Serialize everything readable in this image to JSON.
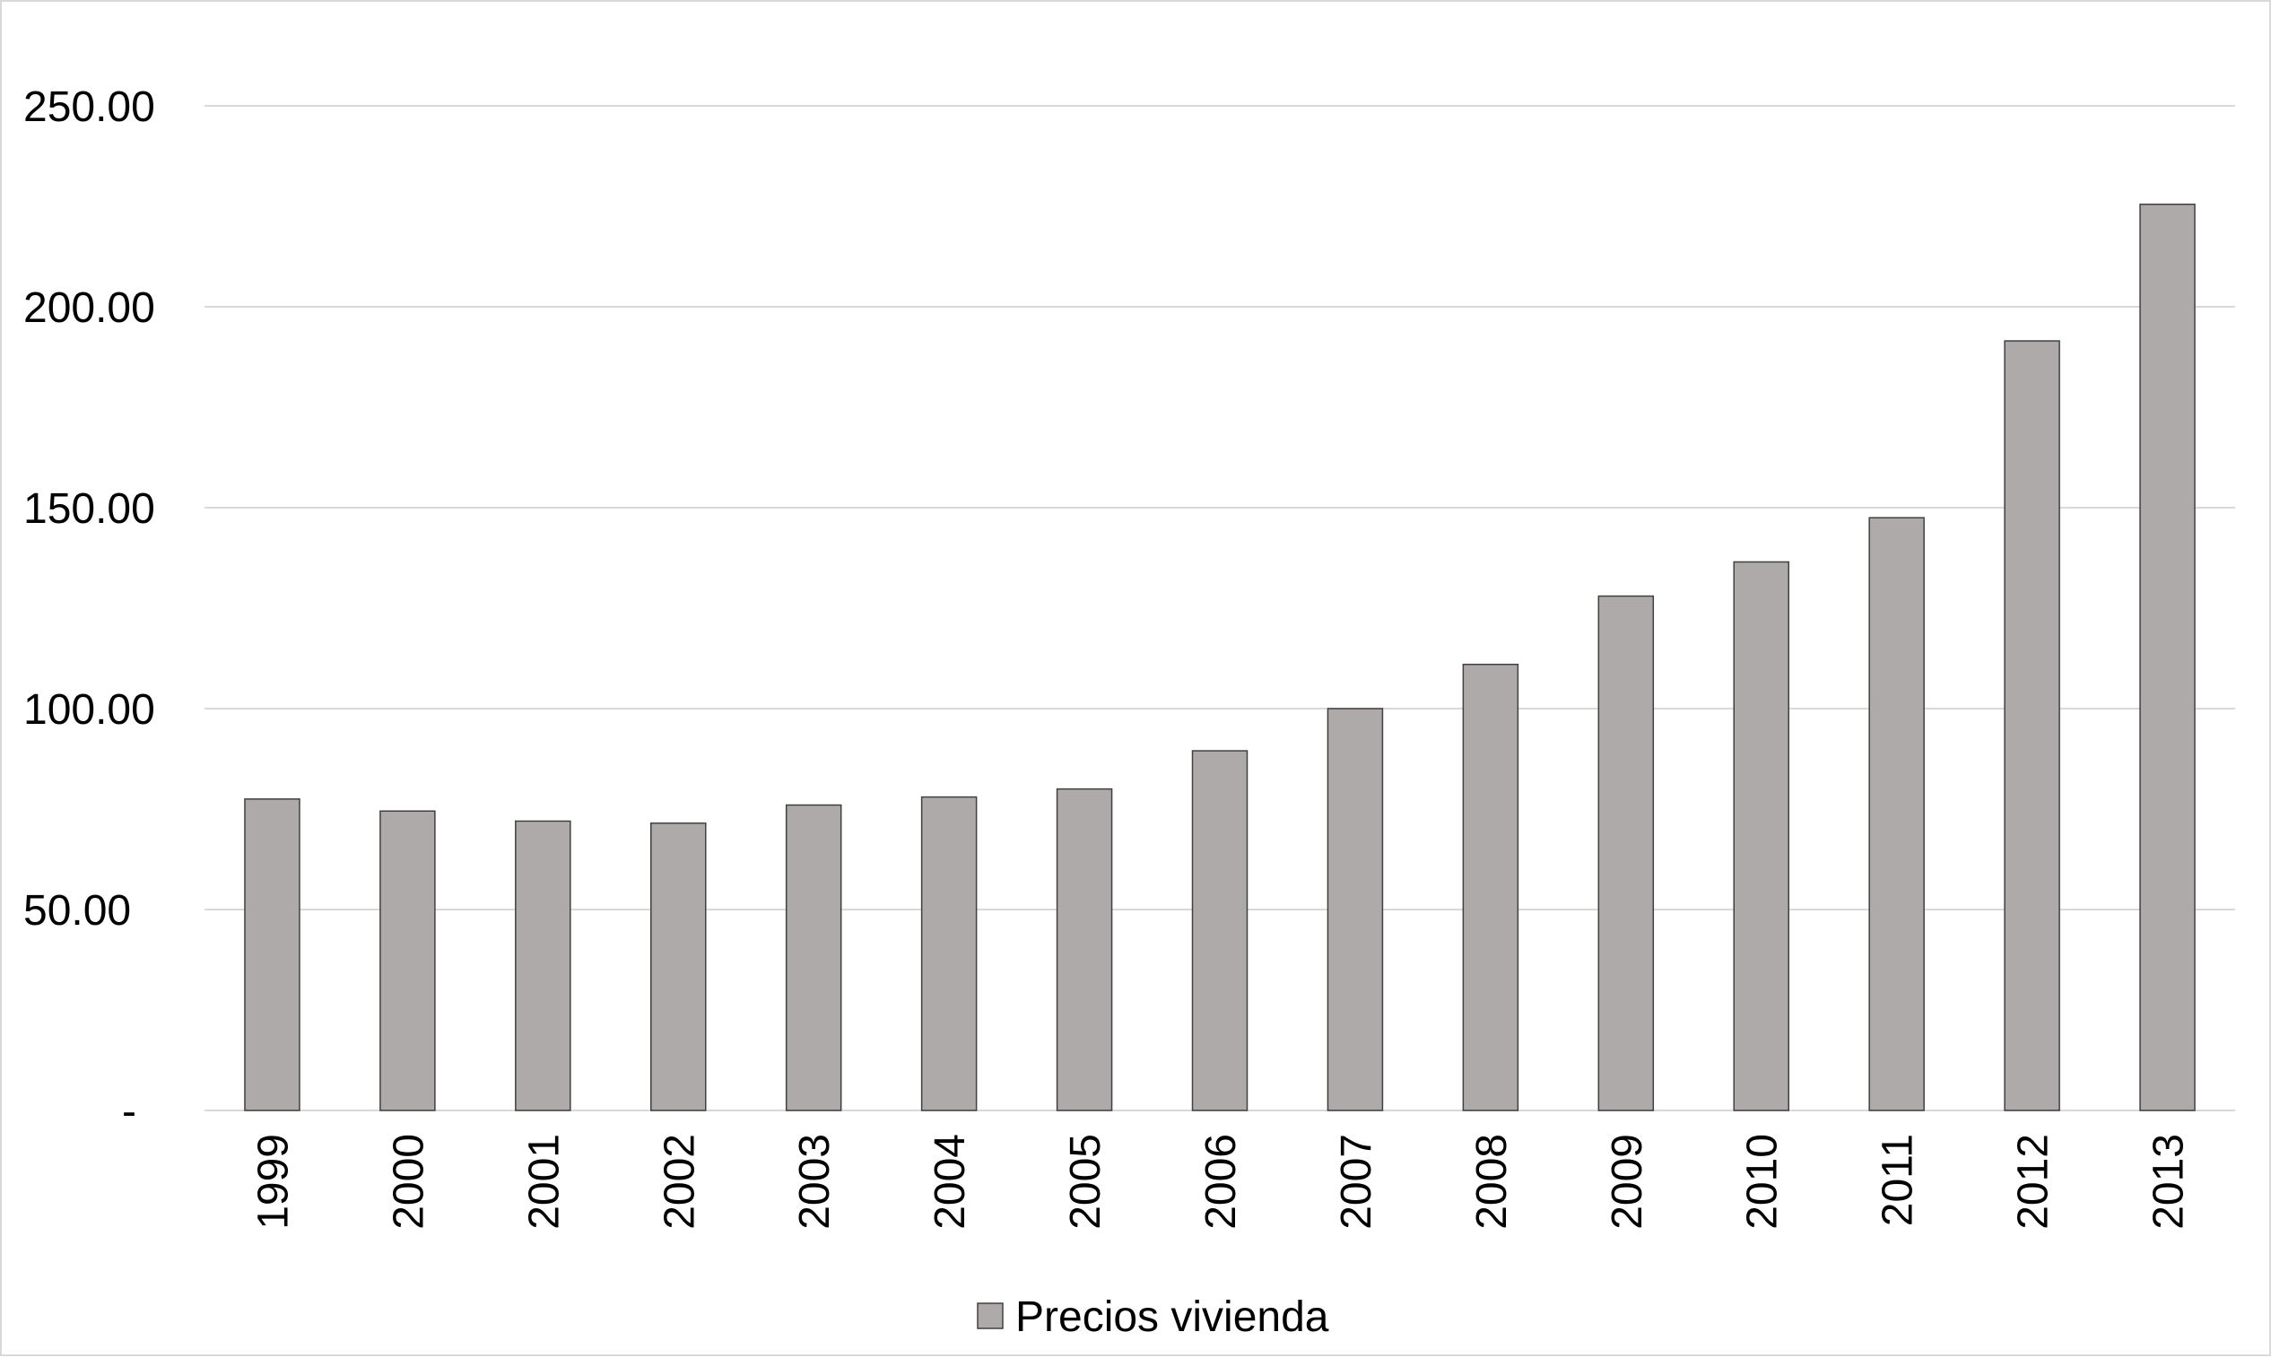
{
  "chart_data": {
    "type": "bar",
    "title": "",
    "xlabel": "",
    "ylabel": "",
    "categories": [
      "1999",
      "2000",
      "2001",
      "2002",
      "2003",
      "2004",
      "2005",
      "2006",
      "2007",
      "2008",
      "2009",
      "2010",
      "2011",
      "2012",
      "2013"
    ],
    "series": [
      {
        "name": "Precios vivienda",
        "values": [
          77.5,
          74.5,
          72.0,
          71.5,
          76.0,
          78.0,
          80.0,
          89.5,
          100.0,
          111.0,
          128.0,
          136.5,
          147.5,
          191.5,
          225.5
        ]
      }
    ],
    "ylim": [
      0,
      250
    ],
    "yticks": [
      {
        "value": 0,
        "label": "-"
      },
      {
        "value": 50,
        "label": "50.00"
      },
      {
        "value": 100,
        "label": "100.00"
      },
      {
        "value": 150,
        "label": "150.00"
      },
      {
        "value": 200,
        "label": "200.00"
      },
      {
        "value": 250,
        "label": "250.00"
      }
    ],
    "grid": true,
    "legend_position": "bottom-center",
    "colors": {
      "bar_fill": "#aeaaaa",
      "bar_stroke": "#404040",
      "grid": "#d9d9d9",
      "axis": "#d9d9d9"
    }
  }
}
